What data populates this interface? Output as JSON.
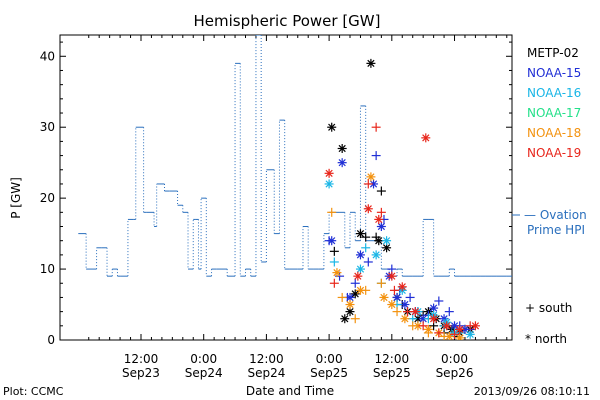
{
  "colors": {
    "METOP-02": "#000000",
    "NOAA-15": "#1f2fd6",
    "NOAA-16": "#19b6e6",
    "NOAA-17": "#23e08a",
    "NOAA-18": "#f3920f",
    "NOAA-19": "#e8261b",
    "ovation": "#2a6fbd"
  },
  "chart_data": {
    "type": "scatter",
    "title": "Hemispheric Power [GW]",
    "xlabel": "Date and Time",
    "ylabel": "P [GW]",
    "ylim": [
      0,
      43
    ],
    "xlim_hours": [
      -3.5,
      83
    ],
    "yticks": [
      0,
      10,
      20,
      30,
      40
    ],
    "xticks": [
      {
        "h": 12,
        "l1": "12:00",
        "l2": "Sep23"
      },
      {
        "h": 24,
        "l1": "0:00",
        "l2": "Sep24"
      },
      {
        "h": 36,
        "l1": "12:00",
        "l2": "Sep24"
      },
      {
        "h": 48,
        "l1": "0:00",
        "l2": "Sep25"
      },
      {
        "h": 60,
        "l1": "12:00",
        "l2": "Sep25"
      },
      {
        "h": 72,
        "l1": "0:00",
        "l2": "Sep26"
      }
    ],
    "legend": {
      "satellites": [
        "METP-02",
        "NOAA-15",
        "NOAA-16",
        "NOAA-17",
        "NOAA-18",
        "NOAA-19"
      ],
      "ovation_line1": "— Ovation",
      "ovation_line2": "Prime HPI",
      "south": "+ south",
      "north": "* north"
    },
    "ovation_series": {
      "name": "Ovation Prime HPI",
      "x": [
        0,
        1.5,
        3.5,
        4.5,
        5.5,
        6.5,
        7.5,
        8,
        9.5,
        10.5,
        11,
        12,
        12.5,
        13,
        14.5,
        15,
        16.5,
        17.5,
        19,
        20,
        21,
        22,
        22.5,
        23,
        23.5,
        24.5,
        25.5,
        26.5,
        27.5,
        28.5,
        29.5,
        30,
        31,
        32,
        33,
        34,
        35,
        36,
        37.5,
        38.5,
        39.5,
        40.5,
        42,
        43,
        44,
        45,
        46,
        47,
        48,
        49,
        50,
        51,
        52,
        53,
        54,
        55,
        56.5,
        58,
        58.5,
        59.5,
        60,
        61,
        62,
        63,
        64,
        65,
        66,
        67,
        68,
        69,
        70,
        71,
        72,
        73,
        74,
        75,
        76,
        77,
        78,
        79,
        80,
        81,
        82
      ],
      "y": [
        15,
        10,
        13,
        13,
        9,
        10,
        9,
        9,
        17,
        17,
        30,
        30,
        18,
        18,
        16,
        22,
        21,
        21,
        19,
        18,
        10,
        17,
        17,
        10,
        20,
        9,
        10,
        10,
        10,
        9,
        9,
        39,
        9,
        10,
        9,
        43,
        11,
        24,
        15,
        31,
        10,
        10,
        10,
        16,
        10,
        10,
        10,
        15,
        18,
        18,
        18,
        13,
        18,
        14,
        33,
        14,
        14,
        10,
        10,
        9,
        9,
        10,
        9,
        9,
        9,
        9,
        17,
        17,
        9,
        9,
        9,
        10,
        9,
        9,
        9,
        9,
        9,
        9,
        9,
        9,
        9,
        9,
        9
      ],
      "step": true,
      "dotted_verticals": true
    },
    "series": [
      {
        "name": "METP-02",
        "south": [
          [
            49,
            12.5
          ],
          [
            55,
            14.5
          ],
          [
            57,
            14.5
          ],
          [
            58,
            21
          ],
          [
            62,
            5
          ],
          [
            66,
            3.5
          ],
          [
            68,
            2
          ],
          [
            70,
            1
          ],
          [
            72,
            0.5
          ],
          [
            74,
            1.5
          ]
        ],
        "north": [
          [
            48.5,
            30
          ],
          [
            50.5,
            27
          ],
          [
            51,
            3
          ],
          [
            52,
            4
          ],
          [
            53,
            6.5
          ],
          [
            54,
            15
          ],
          [
            56,
            39
          ],
          [
            57.5,
            14
          ],
          [
            59,
            13
          ],
          [
            61,
            6
          ],
          [
            63,
            4
          ],
          [
            65,
            3
          ],
          [
            67,
            4
          ],
          [
            68.5,
            3
          ],
          [
            70,
            2
          ],
          [
            71.5,
            1.5
          ],
          [
            73,
            1
          ],
          [
            75,
            1.5
          ]
        ]
      },
      {
        "name": "NOAA-15",
        "south": [
          [
            48,
            14
          ],
          [
            50,
            9
          ],
          [
            51.5,
            6
          ],
          [
            53,
            8
          ],
          [
            55.5,
            11
          ],
          [
            57,
            26
          ],
          [
            58.5,
            17
          ],
          [
            60,
            10
          ],
          [
            61.5,
            7
          ],
          [
            63.5,
            6
          ],
          [
            65,
            4
          ],
          [
            67,
            3.5
          ],
          [
            69,
            5.5
          ],
          [
            71,
            4
          ],
          [
            73,
            2
          ],
          [
            75,
            1.5
          ]
        ],
        "north": [
          [
            48.5,
            14
          ],
          [
            50.5,
            25
          ],
          [
            52,
            6
          ],
          [
            54,
            12
          ],
          [
            56.5,
            22
          ],
          [
            58,
            16
          ],
          [
            59.5,
            9
          ],
          [
            61,
            6
          ],
          [
            62.5,
            5
          ],
          [
            64.5,
            4
          ],
          [
            66,
            3
          ],
          [
            68,
            4.5
          ],
          [
            70,
            3
          ],
          [
            72,
            2
          ],
          [
            74,
            1.5
          ]
        ]
      },
      {
        "name": "NOAA-16",
        "south": [
          [
            49,
            11
          ],
          [
            55,
            13
          ],
          [
            58,
            8
          ],
          [
            61,
            5
          ],
          [
            64,
            3
          ],
          [
            67,
            3
          ],
          [
            70,
            2
          ],
          [
            73,
            1
          ]
        ],
        "north": [
          [
            48,
            22
          ],
          [
            54,
            10
          ],
          [
            57,
            12
          ],
          [
            59,
            14
          ],
          [
            62,
            7
          ],
          [
            65,
            4
          ],
          [
            68,
            3.5
          ],
          [
            70.5,
            2.5
          ],
          [
            72,
            1
          ],
          [
            75,
            0.8
          ]
        ]
      },
      {
        "name": "NOAA-17",
        "south": [],
        "north": []
      },
      {
        "name": "NOAA-18",
        "south": [
          [
            48.5,
            18
          ],
          [
            50.5,
            6
          ],
          [
            53,
            3
          ],
          [
            55,
            7
          ],
          [
            58,
            8
          ],
          [
            61,
            4
          ],
          [
            64,
            2
          ],
          [
            67,
            1
          ],
          [
            70,
            0.5
          ]
        ],
        "north": [
          [
            49.5,
            9.5
          ],
          [
            52,
            5
          ],
          [
            54,
            7
          ],
          [
            56,
            23
          ],
          [
            58.5,
            6
          ],
          [
            60,
            5
          ],
          [
            62.5,
            3
          ],
          [
            65,
            2
          ],
          [
            67,
            1.5
          ],
          [
            69,
            1
          ],
          [
            71,
            0.5
          ],
          [
            73,
            0.3
          ]
        ]
      },
      {
        "name": "NOAA-19",
        "south": [
          [
            49,
            8
          ],
          [
            55.5,
            22
          ],
          [
            57,
            30
          ],
          [
            58,
            18
          ],
          [
            60.5,
            7
          ],
          [
            63,
            4
          ],
          [
            66,
            2
          ],
          [
            69,
            1
          ],
          [
            72,
            0.8
          ],
          [
            75,
            2
          ]
        ],
        "north": [
          [
            48,
            23.5
          ],
          [
            53.5,
            9
          ],
          [
            55.5,
            18.5
          ],
          [
            57.5,
            17
          ],
          [
            60,
            9
          ],
          [
            62,
            7.5
          ],
          [
            66.5,
            28.5
          ],
          [
            64.5,
            4
          ],
          [
            68,
            3
          ],
          [
            70.5,
            2
          ],
          [
            73,
            1.5
          ],
          [
            76,
            2
          ]
        ]
      }
    ]
  },
  "footer": {
    "plot_credit": "Plot: CCMC",
    "timestamp": "2013/09/26 08:10:11"
  }
}
